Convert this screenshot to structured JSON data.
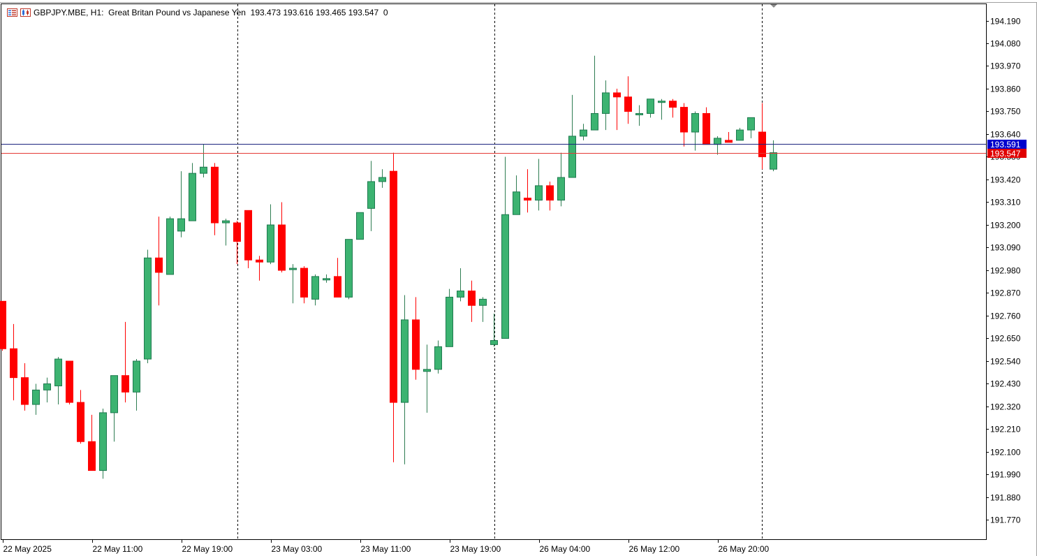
{
  "header": {
    "symbol": "GBPJPY.MBE, H1:",
    "description": "Great Britan Pound vs Japanese Yen",
    "ohlc": "193.473 193.616 193.465 193.547",
    "tick_volume": "0",
    "menu_icon": "list-menu-icon",
    "chart_icon": "chart-type-icon"
  },
  "colors": {
    "bull": "#26a069",
    "bull_fill": "#3cb371",
    "bear": "#ff0000",
    "ask_line": "#1a237e",
    "bid_line": "#e53935",
    "ask_label_bg": "#0000cd",
    "bid_label_bg": "#e00000"
  },
  "price_labels": {
    "ask": "193.591",
    "bid": "193.547"
  },
  "chart_data": {
    "type": "candlestick",
    "timeframe": "H1",
    "y_ticks": [
      "194.190",
      "194.080",
      "193.970",
      "193.860",
      "193.750",
      "193.640",
      "193.530",
      "193.420",
      "193.310",
      "193.200",
      "193.090",
      "192.980",
      "192.870",
      "192.760",
      "192.650",
      "192.540",
      "192.430",
      "192.320",
      "192.210",
      "192.100",
      "191.990",
      "191.880",
      "191.770"
    ],
    "x_ticks": [
      "22 May 2025",
      "22 May 11:00",
      "22 May 19:00",
      "23 May 03:00",
      "23 May 11:00",
      "23 May 19:00",
      "26 May 04:00",
      "26 May 12:00",
      "26 May 20:00"
    ],
    "ylim": [
      191.72,
      194.24
    ],
    "ask": 193.591,
    "bid": 193.547,
    "candles": [
      [
        192.83,
        192.83,
        192.59,
        192.6
      ],
      [
        192.6,
        192.72,
        192.35,
        192.46
      ],
      [
        192.46,
        192.53,
        192.3,
        192.33
      ],
      [
        192.33,
        192.43,
        192.28,
        192.4
      ],
      [
        192.4,
        192.46,
        192.34,
        192.43
      ],
      [
        192.42,
        192.56,
        192.33,
        192.55
      ],
      [
        192.54,
        192.54,
        192.33,
        192.34
      ],
      [
        192.34,
        192.4,
        192.14,
        192.15
      ],
      [
        192.15,
        192.28,
        192.01,
        192.01
      ],
      [
        192.01,
        192.31,
        191.97,
        192.29
      ],
      [
        192.29,
        192.47,
        192.15,
        192.47
      ],
      [
        192.47,
        192.73,
        192.34,
        192.39
      ],
      [
        192.39,
        192.55,
        192.3,
        192.54
      ],
      [
        192.55,
        193.08,
        192.53,
        193.04
      ],
      [
        193.04,
        193.24,
        192.81,
        192.97
      ],
      [
        192.96,
        193.24,
        192.96,
        193.23
      ],
      [
        193.17,
        193.46,
        193.14,
        193.23
      ],
      [
        193.22,
        193.5,
        193.22,
        193.45
      ],
      [
        193.45,
        193.59,
        193.43,
        193.48
      ],
      [
        193.48,
        193.5,
        193.15,
        193.21
      ],
      [
        193.21,
        193.23,
        193.1,
        193.22
      ],
      [
        193.21,
        193.22,
        193.01,
        193.12
      ],
      [
        193.27,
        193.27,
        192.99,
        193.03
      ],
      [
        193.03,
        193.05,
        192.93,
        193.02
      ],
      [
        193.02,
        193.3,
        193.01,
        193.2
      ],
      [
        193.2,
        193.31,
        192.97,
        192.98
      ],
      [
        192.99,
        193.01,
        192.82,
        192.99
      ],
      [
        192.99,
        193.0,
        192.82,
        192.85
      ],
      [
        192.84,
        192.96,
        192.81,
        192.95
      ],
      [
        192.94,
        192.96,
        192.92,
        192.94
      ],
      [
        192.95,
        193.04,
        192.85,
        192.85
      ],
      [
        192.85,
        193.13,
        192.84,
        193.13
      ],
      [
        193.13,
        193.25,
        193.13,
        193.26
      ],
      [
        193.28,
        193.51,
        193.17,
        193.41
      ],
      [
        193.41,
        193.47,
        193.38,
        193.43
      ],
      [
        193.46,
        193.55,
        192.05,
        192.34
      ],
      [
        192.34,
        192.86,
        192.04,
        192.74
      ],
      [
        192.74,
        192.85,
        192.45,
        192.5
      ],
      [
        192.49,
        192.62,
        192.29,
        192.5
      ],
      [
        192.5,
        192.64,
        192.48,
        192.61
      ],
      [
        192.61,
        192.89,
        192.61,
        192.85
      ],
      [
        192.85,
        192.99,
        192.83,
        192.88
      ],
      [
        192.88,
        192.93,
        192.73,
        192.81
      ],
      [
        192.81,
        192.85,
        192.73,
        192.84
      ],
      [
        192.62,
        192.77,
        192.61,
        192.64
      ],
      [
        192.65,
        193.53,
        192.65,
        193.25
      ],
      [
        193.25,
        193.44,
        193.25,
        193.36
      ],
      [
        193.33,
        193.47,
        193.26,
        193.32
      ],
      [
        193.32,
        193.52,
        193.27,
        193.39
      ],
      [
        193.39,
        193.41,
        193.27,
        193.32
      ],
      [
        193.32,
        193.55,
        193.29,
        193.43
      ],
      [
        193.43,
        193.83,
        193.43,
        193.63
      ],
      [
        193.63,
        193.69,
        193.61,
        193.66
      ],
      [
        193.66,
        194.02,
        193.66,
        193.74
      ],
      [
        193.74,
        193.9,
        193.66,
        193.84
      ],
      [
        193.84,
        193.86,
        193.66,
        193.82
      ],
      [
        193.82,
        193.92,
        193.69,
        193.75
      ],
      [
        193.74,
        193.78,
        193.68,
        193.74
      ],
      [
        193.74,
        193.81,
        193.72,
        193.81
      ],
      [
        193.8,
        193.81,
        193.71,
        193.8
      ],
      [
        193.8,
        193.81,
        193.72,
        193.77
      ],
      [
        193.77,
        193.79,
        193.58,
        193.65
      ],
      [
        193.65,
        193.75,
        193.56,
        193.74
      ],
      [
        193.74,
        193.77,
        193.59,
        193.59
      ],
      [
        193.59,
        193.63,
        193.54,
        193.62
      ],
      [
        193.61,
        193.65,
        193.61,
        193.6
      ],
      [
        193.61,
        193.67,
        193.61,
        193.66
      ],
      [
        193.66,
        193.72,
        193.62,
        193.72
      ],
      [
        193.65,
        193.79,
        193.47,
        193.53
      ],
      [
        193.47,
        193.61,
        193.46,
        193.55
      ]
    ]
  }
}
